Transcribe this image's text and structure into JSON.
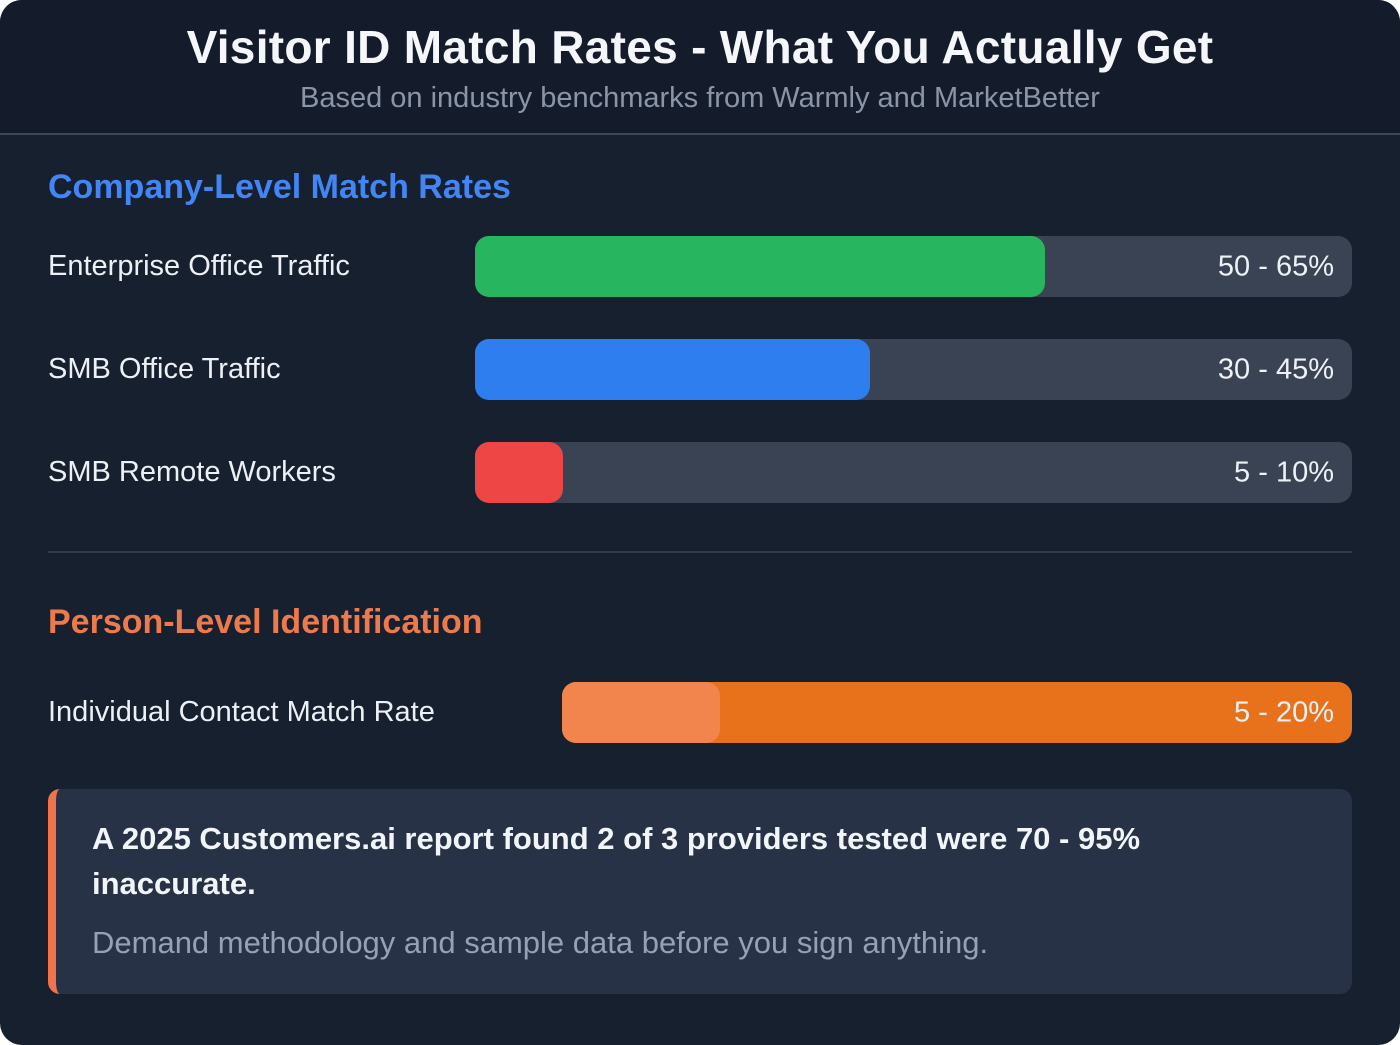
{
  "header": {
    "title": "Visitor ID Match Rates - What You Actually Get",
    "subtitle": "Based on industry benchmarks from Warmly and MarketBetter"
  },
  "colors": {
    "card_background": "#16202e",
    "header_background": "#141c2b",
    "bar_track": "#394353",
    "company_accent": "#4285f5",
    "person_accent": "#ed7a4d",
    "callout_background": "#273247",
    "callout_border": "#f0744b"
  },
  "chart_data": {
    "type": "bar",
    "title": "Visitor ID Match Rates - What You Actually Get",
    "subtitle": "Based on industry benchmarks from Warmly and MarketBetter",
    "unit": "percent",
    "xlim": [
      0,
      100
    ],
    "grid": false,
    "legend": false,
    "sections": [
      {
        "title": "Company-Level Match Rates",
        "accent_color": "#4285f5",
        "rows": [
          {
            "label": "Enterprise Office Traffic",
            "value_label": "50 - 65%",
            "range_min": 50,
            "range_max": 65,
            "fill_percent": 65,
            "fill_color": "#27b560"
          },
          {
            "label": "SMB Office Traffic",
            "value_label": "30 - 45%",
            "range_min": 30,
            "range_max": 45,
            "fill_percent": 45,
            "fill_color": "#2f7ef0"
          },
          {
            "label": "SMB Remote Workers",
            "value_label": "5 - 10%",
            "range_min": 5,
            "range_max": 10,
            "fill_percent": 10,
            "fill_color": "#ee4545"
          }
        ]
      },
      {
        "title": "Person-Level Identification",
        "accent_color": "#ed7a4d",
        "rows": [
          {
            "label": "Individual Contact Match Rate",
            "value_label": "5 - 20%",
            "range_min": 5,
            "range_max": 20,
            "fill_percent": 20,
            "fill_color": "#f2854e",
            "track_color": "#e8711b"
          }
        ]
      }
    ]
  },
  "callout": {
    "headline": "A 2025 Customers.ai report found 2 of 3 providers tested were 70 - 95% inaccurate.",
    "body": "Demand methodology and sample data before you sign anything."
  }
}
